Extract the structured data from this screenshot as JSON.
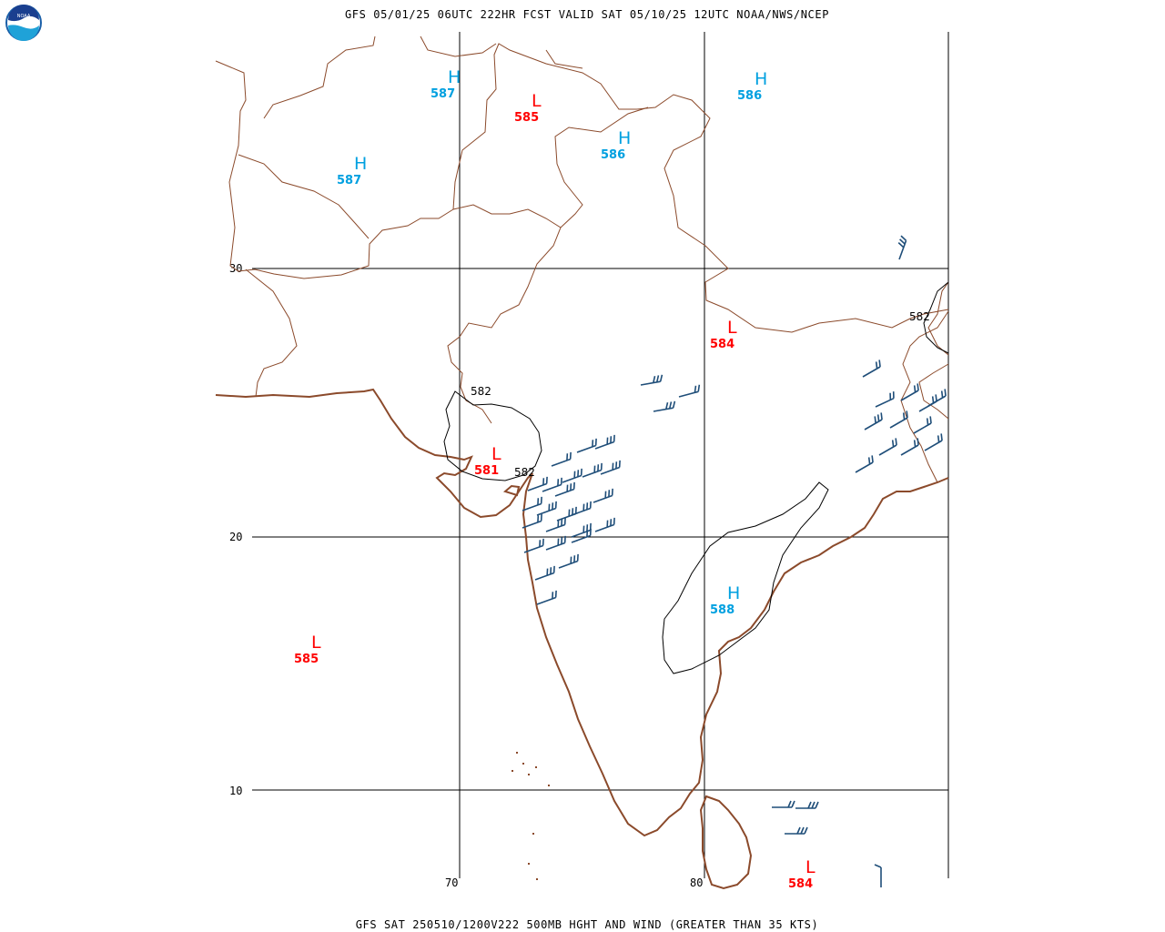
{
  "header": {
    "title": "GFS 05/01/25 06UTC 222HR FCST VALID SAT 05/10/25 12UTC NOAA/NWS/NCEP",
    "footer": "GFS SAT 250510/1200V222 500MB HGHT AND WIND (GREATER THAN 35 KTS)"
  },
  "logo": {
    "text": "NOAA",
    "icon": "noaa-logo-icon"
  },
  "grid": {
    "lat_labels": [
      "30",
      "20",
      "10"
    ],
    "lon_labels": [
      "70",
      "80"
    ]
  },
  "centers": [
    {
      "type": "H",
      "value": "587"
    },
    {
      "type": "L",
      "value": "585"
    },
    {
      "type": "H",
      "value": "586"
    },
    {
      "type": "H",
      "value": "587"
    },
    {
      "type": "H",
      "value": "586"
    },
    {
      "type": "L",
      "value": "584"
    },
    {
      "type": "L",
      "value": "581"
    },
    {
      "type": "H",
      "value": "588"
    },
    {
      "type": "L",
      "value": "585"
    },
    {
      "type": "L",
      "value": "584"
    }
  ],
  "contour_labels": [
    "582",
    "582",
    "582"
  ],
  "colors": {
    "high": "#00a0e0",
    "low": "#ff0000",
    "border": "#8b4a2b",
    "wind_barb": "#1f4e79",
    "grid": "#000000"
  }
}
